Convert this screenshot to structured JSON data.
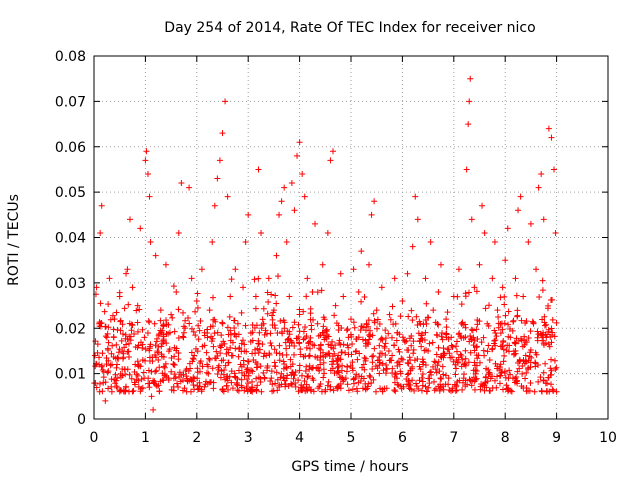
{
  "chart_data": {
    "type": "scatter",
    "title": "Day 254 of 2014, Rate Of TEC Index for receiver nico",
    "xlabel": "GPS time / hours",
    "ylabel": "ROTI / TECUs",
    "xlim": [
      0,
      10
    ],
    "ylim": [
      0,
      0.08
    ],
    "x_ticks": [
      "0",
      "1",
      "2",
      "3",
      "4",
      "5",
      "6",
      "7",
      "8",
      "9",
      "10"
    ],
    "y_ticks": [
      "0",
      "0.01",
      "0.02",
      "0.03",
      "0.04",
      "0.05",
      "0.06",
      "0.07",
      "0.08"
    ],
    "grid": true,
    "marker": "+",
    "color": "#ff0000",
    "series": [
      {
        "name": "ROTI",
        "points": [
          [
            0.02,
            0.014
          ],
          [
            0.05,
            0.029
          ],
          [
            0.1,
            0.012
          ],
          [
            0.12,
            0.041
          ],
          [
            0.15,
            0.047
          ],
          [
            0.18,
            0.008
          ],
          [
            0.22,
            0.004
          ],
          [
            0.25,
            0.018
          ],
          [
            0.3,
            0.031
          ],
          [
            0.35,
            0.012
          ],
          [
            0.4,
            0.022
          ],
          [
            0.45,
            0.009
          ],
          [
            0.5,
            0.027
          ],
          [
            0.55,
            0.015
          ],
          [
            0.6,
            0.011
          ],
          [
            0.65,
            0.033
          ],
          [
            0.7,
            0.044
          ],
          [
            0.75,
            0.029
          ],
          [
            0.8,
            0.012
          ],
          [
            0.85,
            0.025
          ],
          [
            0.9,
            0.042
          ],
          [
            0.95,
            0.013
          ],
          [
            1.0,
            0.057
          ],
          [
            1.02,
            0.059
          ],
          [
            1.05,
            0.054
          ],
          [
            1.08,
            0.049
          ],
          [
            1.1,
            0.039
          ],
          [
            1.12,
            0.005
          ],
          [
            1.15,
            0.002
          ],
          [
            1.18,
            0.021
          ],
          [
            1.2,
            0.036
          ],
          [
            1.25,
            0.013
          ],
          [
            1.3,
            0.024
          ],
          [
            1.35,
            0.017
          ],
          [
            1.4,
            0.034
          ],
          [
            1.45,
            0.009
          ],
          [
            1.5,
            0.023
          ],
          [
            1.55,
            0.012
          ],
          [
            1.6,
            0.028
          ],
          [
            1.65,
            0.041
          ],
          [
            1.7,
            0.052
          ],
          [
            1.75,
            0.019
          ],
          [
            1.8,
            0.011
          ],
          [
            1.85,
            0.051
          ],
          [
            1.9,
            0.031
          ],
          [
            1.95,
            0.014
          ],
          [
            2.0,
            0.026
          ],
          [
            2.05,
            0.008
          ],
          [
            2.1,
            0.033
          ],
          [
            2.15,
            0.019
          ],
          [
            2.2,
            0.012
          ],
          [
            2.25,
            0.024
          ],
          [
            2.3,
            0.039
          ],
          [
            2.35,
            0.047
          ],
          [
            2.4,
            0.053
          ],
          [
            2.45,
            0.057
          ],
          [
            2.5,
            0.063
          ],
          [
            2.55,
            0.07
          ],
          [
            2.6,
            0.049
          ],
          [
            2.65,
            0.027
          ],
          [
            2.7,
            0.014
          ],
          [
            2.75,
            0.033
          ],
          [
            2.8,
            0.021
          ],
          [
            2.85,
            0.012
          ],
          [
            2.9,
            0.029
          ],
          [
            2.95,
            0.039
          ],
          [
            3.0,
            0.045
          ],
          [
            3.05,
            0.017
          ],
          [
            3.1,
            0.013
          ],
          [
            3.15,
            0.027
          ],
          [
            3.2,
            0.055
          ],
          [
            3.25,
            0.041
          ],
          [
            3.3,
            0.021
          ],
          [
            3.35,
            0.014
          ],
          [
            3.4,
            0.031
          ],
          [
            3.45,
            0.009
          ],
          [
            3.5,
            0.024
          ],
          [
            3.55,
            0.036
          ],
          [
            3.6,
            0.045
          ],
          [
            3.65,
            0.048
          ],
          [
            3.7,
            0.051
          ],
          [
            3.75,
            0.039
          ],
          [
            3.8,
            0.027
          ],
          [
            3.85,
            0.052
          ],
          [
            3.9,
            0.046
          ],
          [
            3.95,
            0.058
          ],
          [
            4.0,
            0.061
          ],
          [
            4.05,
            0.054
          ],
          [
            4.1,
            0.049
          ],
          [
            4.15,
            0.031
          ],
          [
            4.2,
            0.014
          ],
          [
            4.25,
            0.028
          ],
          [
            4.3,
            0.043
          ],
          [
            4.35,
            0.021
          ],
          [
            4.4,
            0.012
          ],
          [
            4.45,
            0.034
          ],
          [
            4.5,
            0.018
          ],
          [
            4.55,
            0.041
          ],
          [
            4.6,
            0.057
          ],
          [
            4.65,
            0.059
          ],
          [
            4.7,
            0.025
          ],
          [
            4.75,
            0.014
          ],
          [
            4.8,
            0.032
          ],
          [
            4.85,
            0.027
          ],
          [
            4.9,
            0.009
          ],
          [
            4.95,
            0.018
          ],
          [
            5.0,
            0.022
          ],
          [
            5.05,
            0.033
          ],
          [
            5.1,
            0.015
          ],
          [
            5.15,
            0.028
          ],
          [
            5.2,
            0.037
          ],
          [
            5.25,
            0.012
          ],
          [
            5.3,
            0.021
          ],
          [
            5.35,
            0.034
          ],
          [
            5.4,
            0.045
          ],
          [
            5.45,
            0.048
          ],
          [
            5.5,
            0.024
          ],
          [
            5.55,
            0.013
          ],
          [
            5.6,
            0.029
          ],
          [
            5.65,
            0.016
          ],
          [
            5.7,
            0.011
          ],
          [
            5.75,
            0.023
          ],
          [
            5.8,
            0.014
          ],
          [
            5.85,
            0.031
          ],
          [
            5.9,
            0.019
          ],
          [
            5.95,
            0.012
          ],
          [
            6.0,
            0.026
          ],
          [
            6.05,
            0.017
          ],
          [
            6.1,
            0.032
          ],
          [
            6.15,
            0.013
          ],
          [
            6.2,
            0.038
          ],
          [
            6.25,
            0.049
          ],
          [
            6.3,
            0.044
          ],
          [
            6.35,
            0.021
          ],
          [
            6.4,
            0.012
          ],
          [
            6.45,
            0.031
          ],
          [
            6.5,
            0.015
          ],
          [
            6.55,
            0.039
          ],
          [
            6.6,
            0.024
          ],
          [
            6.65,
            0.011
          ],
          [
            6.7,
            0.028
          ],
          [
            6.75,
            0.034
          ],
          [
            6.8,
            0.014
          ],
          [
            6.85,
            0.022
          ],
          [
            6.9,
            0.009
          ],
          [
            6.95,
            0.018
          ],
          [
            7.0,
            0.027
          ],
          [
            7.05,
            0.013
          ],
          [
            7.1,
            0.033
          ],
          [
            7.15,
            0.021
          ],
          [
            7.2,
            0.012
          ],
          [
            7.25,
            0.055
          ],
          [
            7.28,
            0.065
          ],
          [
            7.3,
            0.07
          ],
          [
            7.32,
            0.075
          ],
          [
            7.35,
            0.044
          ],
          [
            7.4,
            0.029
          ],
          [
            7.45,
            0.016
          ],
          [
            7.5,
            0.034
          ],
          [
            7.55,
            0.047
          ],
          [
            7.6,
            0.041
          ],
          [
            7.65,
            0.021
          ],
          [
            7.7,
            0.013
          ],
          [
            7.75,
            0.031
          ],
          [
            7.8,
            0.039
          ],
          [
            7.85,
            0.024
          ],
          [
            7.9,
            0.011
          ],
          [
            7.95,
            0.029
          ],
          [
            8.0,
            0.035
          ],
          [
            8.05,
            0.042
          ],
          [
            8.1,
            0.018
          ],
          [
            8.15,
            0.009
          ],
          [
            8.2,
            0.031
          ],
          [
            8.25,
            0.046
          ],
          [
            8.3,
            0.049
          ],
          [
            8.35,
            0.027
          ],
          [
            8.4,
            0.014
          ],
          [
            8.45,
            0.039
          ],
          [
            8.5,
            0.043
          ],
          [
            8.55,
            0.021
          ],
          [
            8.6,
            0.033
          ],
          [
            8.65,
            0.051
          ],
          [
            8.7,
            0.054
          ],
          [
            8.75,
            0.044
          ],
          [
            8.8,
            0.018
          ],
          [
            8.85,
            0.064
          ],
          [
            8.9,
            0.062
          ],
          [
            8.95,
            0.055
          ],
          [
            8.98,
            0.041
          ],
          [
            9.0,
            0.006
          ]
        ]
      }
    ],
    "band": {
      "x_start": 0,
      "x_end": 9,
      "typical_low": 0.006,
      "typical_high": 0.022
    }
  }
}
